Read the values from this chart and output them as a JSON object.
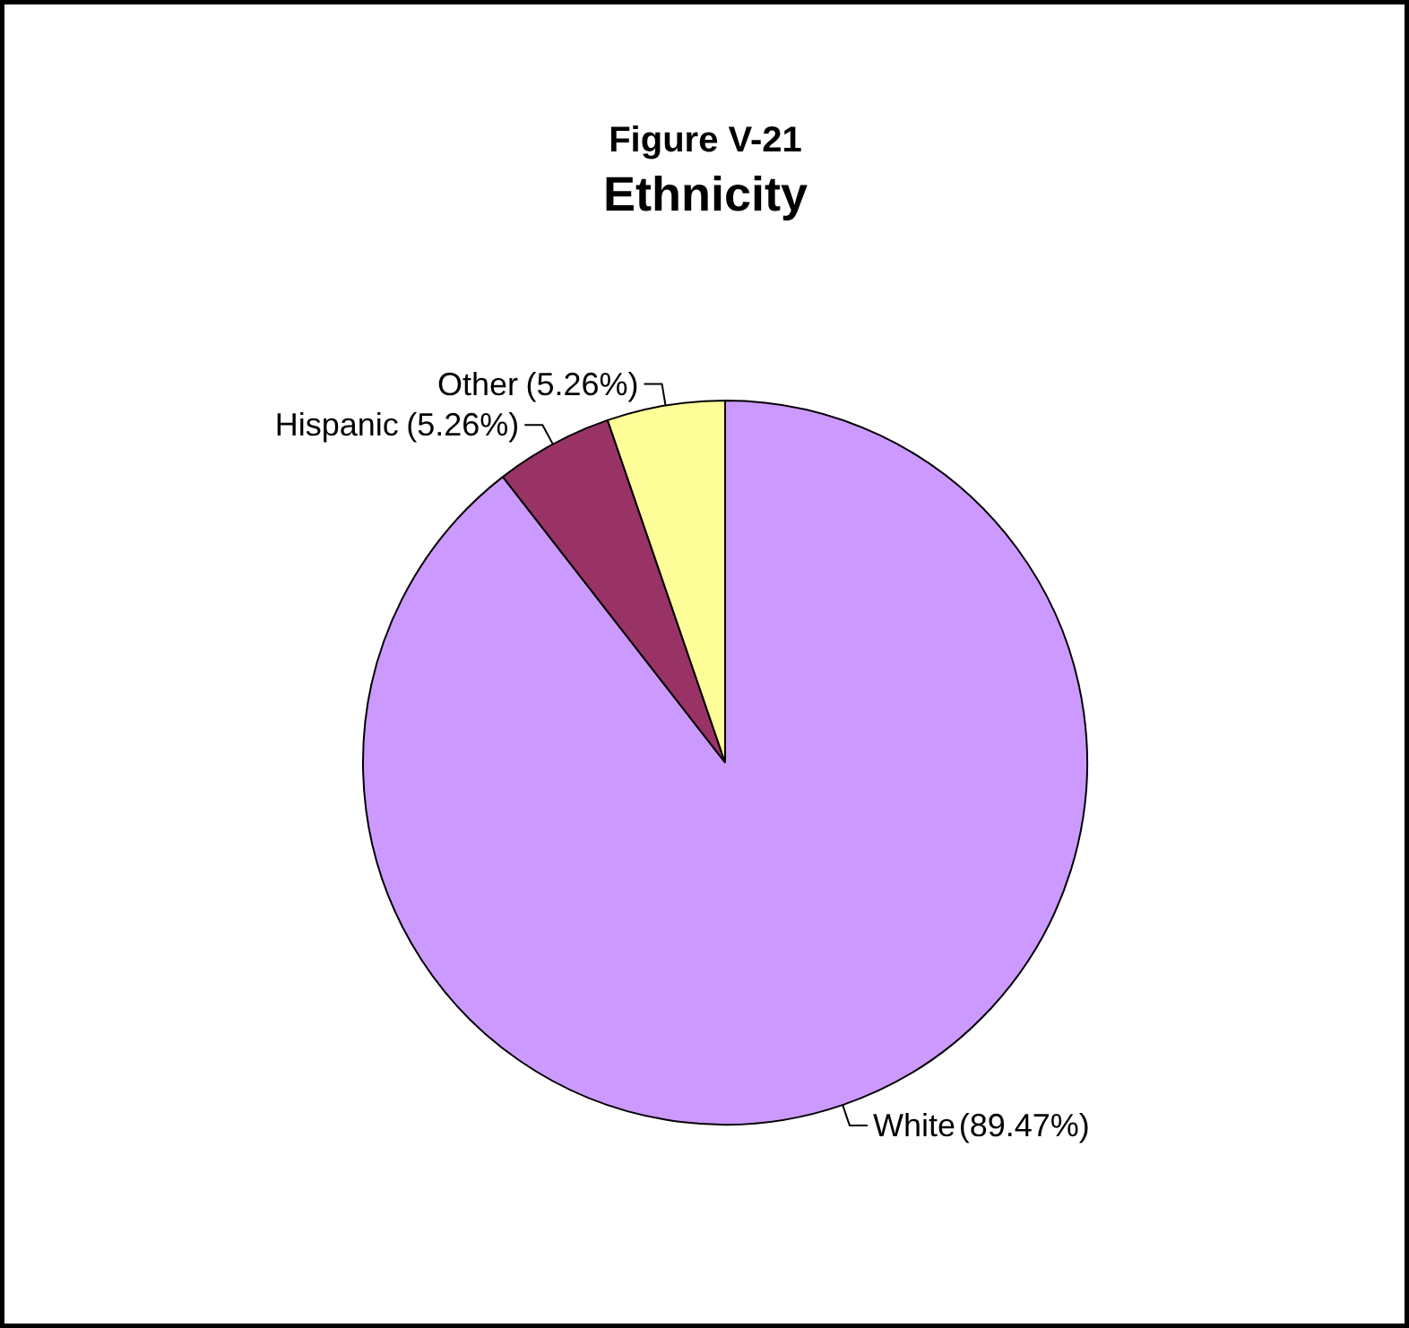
{
  "chart_data": {
    "type": "pie",
    "title": "Ethnicity",
    "subtitle": "Figure V-21",
    "categories": [
      "White",
      "Hispanic",
      "Other"
    ],
    "values": [
      89.47,
      5.26,
      5.26
    ],
    "value_labels": [
      "(89.47%)",
      "(5.26%)",
      "(5.26%)"
    ],
    "colors": [
      "#cc99ff",
      "#993366",
      "#ffff99"
    ]
  }
}
